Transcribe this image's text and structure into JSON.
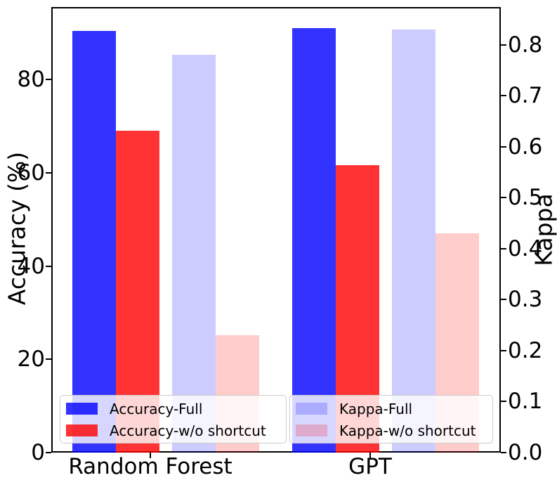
{
  "chart_data": {
    "type": "bar",
    "title": "",
    "categories": [
      "Random Forest",
      "GPT"
    ],
    "series": [
      {
        "name": "Accuracy-Full",
        "axis": "left",
        "color": "rgba(0,0,255,0.8)",
        "values": [
          90.4,
          91.0
        ]
      },
      {
        "name": "Accuracy-w/o shortcut",
        "axis": "left",
        "color": "rgba(255,0,0,0.8)",
        "values": [
          69.0,
          61.6
        ]
      },
      {
        "name": "Kappa-Full",
        "axis": "right",
        "color": "rgba(0,0,255,0.2)",
        "values": [
          0.78,
          0.83
        ]
      },
      {
        "name": "Kappa-w/o shortcut",
        "axis": "right",
        "color": "rgba(255,0,0,0.2)",
        "values": [
          0.23,
          0.43
        ]
      }
    ],
    "left_axis": {
      "label": "Accuracy (%)",
      "tick_values": [
        0,
        20,
        40,
        60,
        80
      ],
      "tick_labels": [
        "0",
        "20",
        "40",
        "60",
        "80"
      ],
      "range": [
        0,
        95.5
      ]
    },
    "right_axis": {
      "label": "Kappa",
      "tick_values": [
        0,
        0.1,
        0.2,
        0.3,
        0.4,
        0.5,
        0.6,
        0.7,
        0.8
      ],
      "tick_labels": [
        "0.0",
        "0.1",
        "0.2",
        "0.3",
        "0.4",
        "0.5",
        "0.6",
        "0.7",
        "0.8"
      ],
      "range": [
        0,
        0.873
      ]
    },
    "grid": false,
    "legend_position": "lower inside, two boxes side by side"
  },
  "legends": [
    {
      "items": [
        {
          "label": "Accuracy-Full",
          "color": "rgba(0,0,255,0.8)"
        },
        {
          "label": "Accuracy-w/o shortcut",
          "color": "rgba(255,0,0,0.8)"
        }
      ]
    },
    {
      "items": [
        {
          "label": "Kappa-Full",
          "color": "rgba(0,0,255,0.2)"
        },
        {
          "label": "Kappa-w/o shortcut",
          "color": "rgba(255,0,0,0.2)"
        }
      ]
    }
  ]
}
